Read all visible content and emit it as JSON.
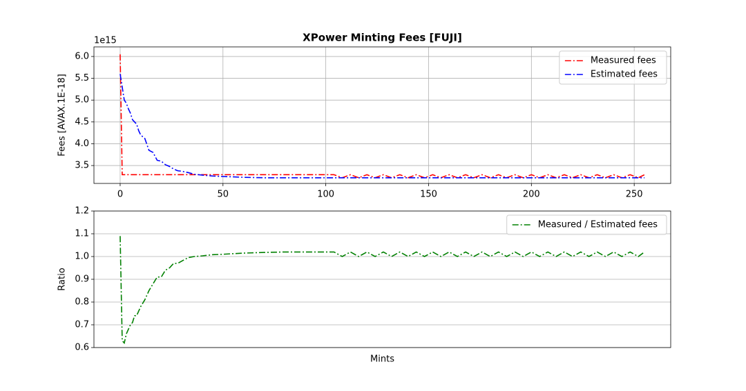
{
  "chart_data": [
    {
      "type": "line",
      "title": "XPower Minting Fees [FUJI]",
      "ylabel": "Fees [AVAX.1E-18]",
      "y_offset_label": "1e15",
      "x": [
        0,
        1,
        2,
        3,
        4,
        5,
        6,
        7,
        8,
        9,
        10,
        12,
        14,
        16,
        18,
        20,
        22,
        24,
        26,
        28,
        30,
        33,
        36,
        40,
        45,
        50,
        60,
        70,
        80,
        90,
        100,
        104,
        108,
        112,
        116,
        120,
        124,
        128,
        132,
        136,
        140,
        144,
        148,
        152,
        156,
        160,
        164,
        168,
        172,
        176,
        180,
        184,
        188,
        192,
        196,
        200,
        204,
        208,
        212,
        216,
        220,
        224,
        228,
        232,
        236,
        240,
        244,
        248,
        252,
        255
      ],
      "series": [
        {
          "name": "Measured fees",
          "color": "#ff0000",
          "values": [
            6.05,
            3.29,
            3.29,
            3.29,
            3.29,
            3.29,
            3.29,
            3.29,
            3.29,
            3.29,
            3.29,
            3.29,
            3.29,
            3.29,
            3.29,
            3.29,
            3.29,
            3.29,
            3.29,
            3.29,
            3.29,
            3.29,
            3.29,
            3.29,
            3.29,
            3.29,
            3.29,
            3.29,
            3.29,
            3.29,
            3.29,
            3.29,
            3.22,
            3.29,
            3.22,
            3.29,
            3.22,
            3.29,
            3.22,
            3.29,
            3.22,
            3.29,
            3.22,
            3.29,
            3.22,
            3.29,
            3.22,
            3.29,
            3.22,
            3.29,
            3.22,
            3.29,
            3.22,
            3.29,
            3.22,
            3.29,
            3.22,
            3.29,
            3.22,
            3.29,
            3.22,
            3.29,
            3.22,
            3.29,
            3.22,
            3.29,
            3.22,
            3.29,
            3.22,
            3.29
          ]
        },
        {
          "name": "Estimated fees",
          "color": "#0000ff",
          "values": [
            5.6,
            5.3,
            5.0,
            4.93,
            4.8,
            4.7,
            4.55,
            4.5,
            4.45,
            4.3,
            4.2,
            4.12,
            3.85,
            3.8,
            3.62,
            3.6,
            3.52,
            3.48,
            3.42,
            3.38,
            3.37,
            3.34,
            3.3,
            3.28,
            3.26,
            3.25,
            3.23,
            3.22,
            3.22,
            3.22,
            3.22,
            3.22,
            3.22,
            3.22,
            3.22,
            3.22,
            3.22,
            3.22,
            3.22,
            3.22,
            3.22,
            3.22,
            3.22,
            3.22,
            3.22,
            3.22,
            3.22,
            3.22,
            3.22,
            3.22,
            3.22,
            3.22,
            3.22,
            3.22,
            3.22,
            3.22,
            3.22,
            3.22,
            3.22,
            3.22,
            3.22,
            3.22,
            3.22,
            3.22,
            3.22,
            3.22,
            3.22,
            3.22,
            3.22,
            3.22
          ]
        }
      ],
      "xlim": [
        -12.75,
        267.75
      ],
      "ylim": [
        3.09,
        6.22
      ],
      "xticks": [
        0,
        50,
        100,
        150,
        200,
        250
      ],
      "yticks": [
        3.5,
        {
          "value": 4,
          "label": "4.0"
        },
        4.5,
        {
          "value": 5,
          "label": "5.0"
        },
        5.5,
        {
          "value": 6,
          "label": "6.0"
        }
      ],
      "grid": "both",
      "legend": "upper right"
    },
    {
      "type": "line",
      "xlabel": "Mints",
      "ylabel": "Ratio",
      "x": [
        0,
        1,
        2,
        3,
        4,
        5,
        6,
        7,
        8,
        9,
        10,
        12,
        14,
        16,
        18,
        20,
        22,
        24,
        26,
        28,
        30,
        33,
        36,
        40,
        45,
        50,
        60,
        70,
        80,
        90,
        100,
        104,
        108,
        112,
        116,
        120,
        124,
        128,
        132,
        136,
        140,
        144,
        148,
        152,
        156,
        160,
        164,
        168,
        172,
        176,
        180,
        184,
        188,
        192,
        196,
        200,
        204,
        208,
        212,
        216,
        220,
        224,
        228,
        232,
        236,
        240,
        244,
        248,
        252,
        255
      ],
      "series": [
        {
          "name": "Measured / Estimated fees",
          "color": "#008000",
          "values": [
            1.09,
            0.63,
            0.62,
            0.66,
            0.68,
            0.7,
            0.71,
            0.74,
            0.74,
            0.76,
            0.78,
            0.81,
            0.85,
            0.88,
            0.91,
            0.91,
            0.94,
            0.95,
            0.97,
            0.97,
            0.98,
            0.995,
            1.0,
            1.003,
            1.008,
            1.01,
            1.015,
            1.018,
            1.02,
            1.02,
            1.02,
            1.02,
            1.0,
            1.02,
            1.0,
            1.02,
            1.0,
            1.02,
            1.0,
            1.02,
            1.0,
            1.02,
            1.0,
            1.02,
            1.0,
            1.02,
            1.0,
            1.02,
            1.0,
            1.02,
            1.0,
            1.02,
            1.0,
            1.02,
            1.0,
            1.02,
            1.0,
            1.02,
            1.0,
            1.02,
            1.0,
            1.02,
            1.0,
            1.02,
            1.0,
            1.02,
            1.0,
            1.02,
            1.0,
            1.02
          ]
        }
      ],
      "xlim": [
        -12.75,
        267.75
      ],
      "ylim": [
        0.6,
        1.2
      ],
      "yticks": [
        {
          "value": 0.6,
          "label": "0.6"
        },
        0.7,
        0.8,
        0.9,
        {
          "value": 1,
          "label": "1.0"
        },
        1.1,
        1.2
      ],
      "grid": "y",
      "legend": "upper right"
    }
  ]
}
